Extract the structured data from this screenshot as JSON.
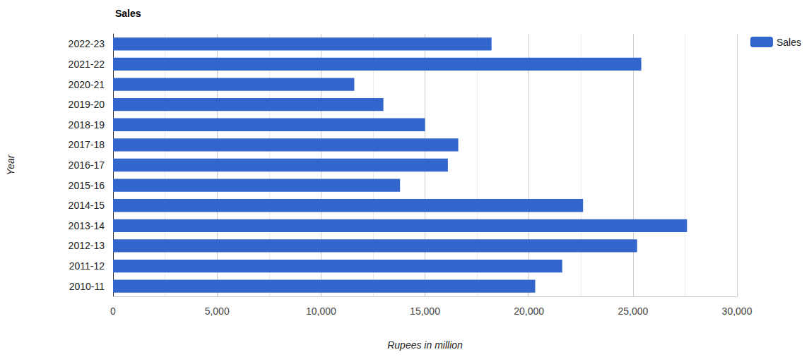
{
  "chart_data": {
    "type": "bar",
    "title": "Sales",
    "orientation": "horizontal",
    "x_label": "Rupees in million",
    "y_label": "Year",
    "categories": [
      "2010-11",
      "2011-12",
      "2012-13",
      "2013-14",
      "2014-15",
      "2015-16",
      "2016-17",
      "2017-18",
      "2018-19",
      "2019-20",
      "2020-21",
      "2021-22",
      "2022-23"
    ],
    "series": [
      {
        "name": "Sales",
        "color": "#3366cc",
        "values": [
          20300,
          21600,
          25200,
          27600,
          22600,
          13800,
          16100,
          16600,
          15000,
          13000,
          11600,
          25400,
          18200
        ]
      }
    ],
    "xlim": [
      0,
      30000
    ],
    "xticks": [
      0,
      {
        "value": 5000,
        "label": "5,000"
      },
      {
        "value": 10000,
        "label": "10,000"
      },
      {
        "value": 15000,
        "label": "15,000"
      },
      {
        "value": 20000,
        "label": "20,000"
      },
      {
        "value": 25000,
        "label": "25,000"
      },
      {
        "value": 30000,
        "label": "30,000"
      }
    ],
    "grid": true,
    "legend": "right"
  }
}
